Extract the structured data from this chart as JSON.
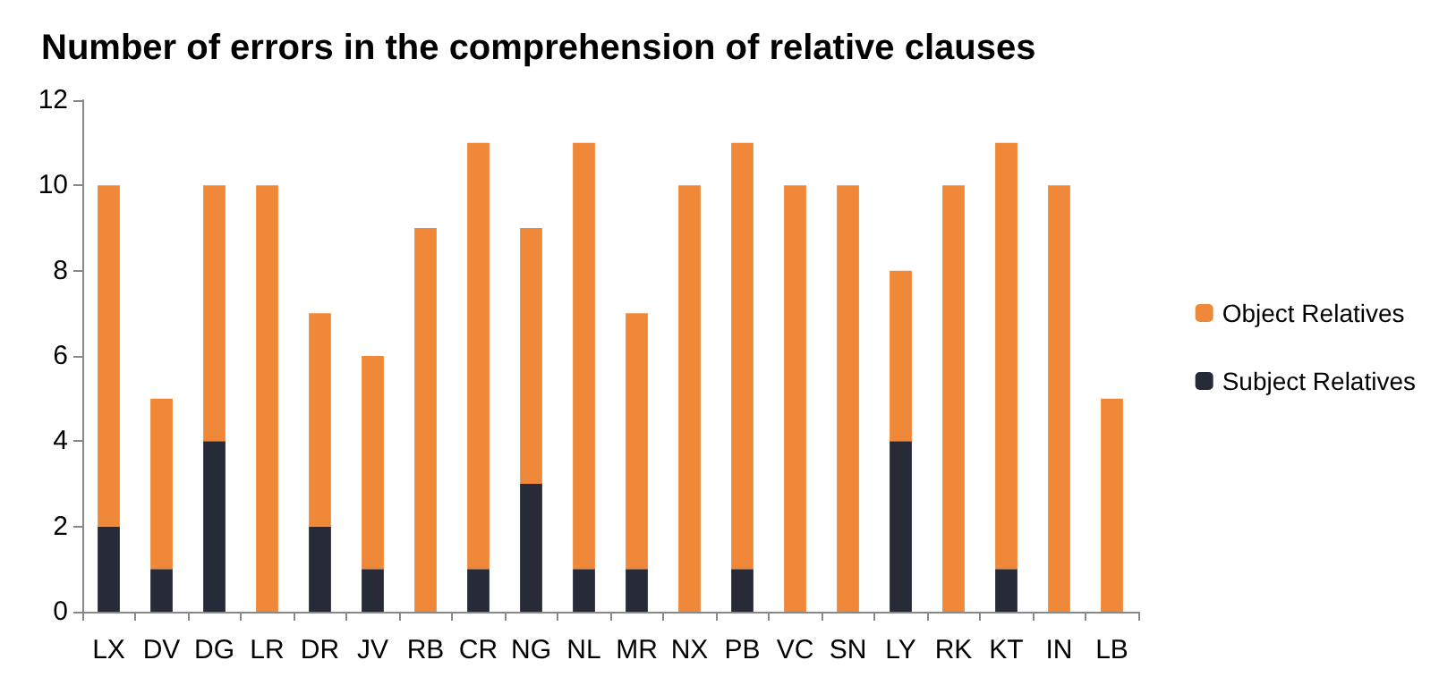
{
  "chart_data": {
    "type": "bar",
    "title": "Number of errors in the comprehension of relative clauses",
    "categories": [
      "LX",
      "DV",
      "DG",
      "LR",
      "DR",
      "JV",
      "RB",
      "CR",
      "NG",
      "NL",
      "MR",
      "NX",
      "PB",
      "VC",
      "SN",
      "LY",
      "RK",
      "KT",
      "IN",
      "LB"
    ],
    "series": [
      {
        "name": "Subject Relatives",
        "color": "#262b37",
        "values": [
          2,
          1,
          4,
          0,
          2,
          1,
          0,
          1,
          3,
          1,
          1,
          0,
          1,
          0,
          0,
          4,
          0,
          1,
          0,
          0
        ]
      },
      {
        "name": "Object Relatives",
        "color": "#f0883a",
        "values": [
          8,
          4,
          6,
          10,
          5,
          5,
          9,
          10,
          6,
          10,
          6,
          10,
          10,
          10,
          10,
          4,
          10,
          10,
          10,
          5
        ]
      }
    ],
    "stacked": true,
    "ylim": [
      0,
      12
    ],
    "yticks": [
      0,
      2,
      4,
      6,
      8,
      10,
      12
    ],
    "grid": false,
    "legend": "right"
  }
}
